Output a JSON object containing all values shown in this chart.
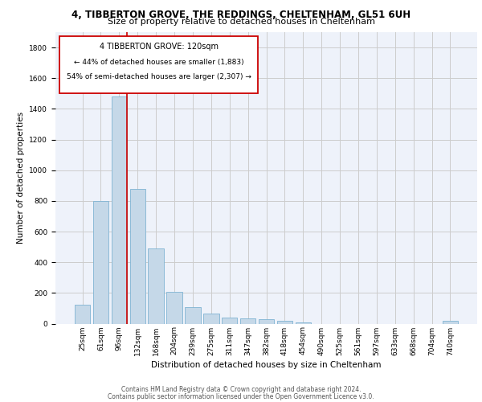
{
  "title_line1": "4, TIBBERTON GROVE, THE REDDINGS, CHELTENHAM, GL51 6UH",
  "title_line2": "Size of property relative to detached houses in Cheltenham",
  "xlabel": "Distribution of detached houses by size in Cheltenham",
  "ylabel": "Number of detached properties",
  "footer_line1": "Contains HM Land Registry data © Crown copyright and database right 2024.",
  "footer_line2": "Contains public sector information licensed under the Open Government Licence v3.0.",
  "categories": [
    "25sqm",
    "61sqm",
    "96sqm",
    "132sqm",
    "168sqm",
    "204sqm",
    "239sqm",
    "275sqm",
    "311sqm",
    "347sqm",
    "382sqm",
    "418sqm",
    "454sqm",
    "490sqm",
    "525sqm",
    "561sqm",
    "597sqm",
    "633sqm",
    "668sqm",
    "704sqm",
    "740sqm"
  ],
  "values": [
    125,
    800,
    1480,
    880,
    490,
    205,
    105,
    65,
    40,
    35,
    30,
    20,
    10,
    0,
    0,
    0,
    0,
    0,
    0,
    0,
    20
  ],
  "bar_color": "#c5d8e8",
  "bar_edge_color": "#7fb3d3",
  "grid_color": "#cccccc",
  "annotation_box_color": "#cc0000",
  "annotation_line_color": "#cc0000",
  "property_label": "4 TIBBERTON GROVE: 120sqm",
  "annotation_line1": "← 44% of detached houses are smaller (1,883)",
  "annotation_line2": "54% of semi-detached houses are larger (2,307) →",
  "marker_bar_index": 2,
  "ylim": [
    0,
    1900
  ],
  "yticks": [
    0,
    200,
    400,
    600,
    800,
    1000,
    1200,
    1400,
    1600,
    1800
  ],
  "background_color": "#eef2fa",
  "title1_fontsize": 8.5,
  "title2_fontsize": 8.0,
  "ylabel_fontsize": 7.5,
  "xlabel_fontsize": 7.5,
  "footer_fontsize": 5.5,
  "annot_fontsize1": 7.0,
  "annot_fontsize2": 6.5,
  "tick_fontsize": 6.5
}
